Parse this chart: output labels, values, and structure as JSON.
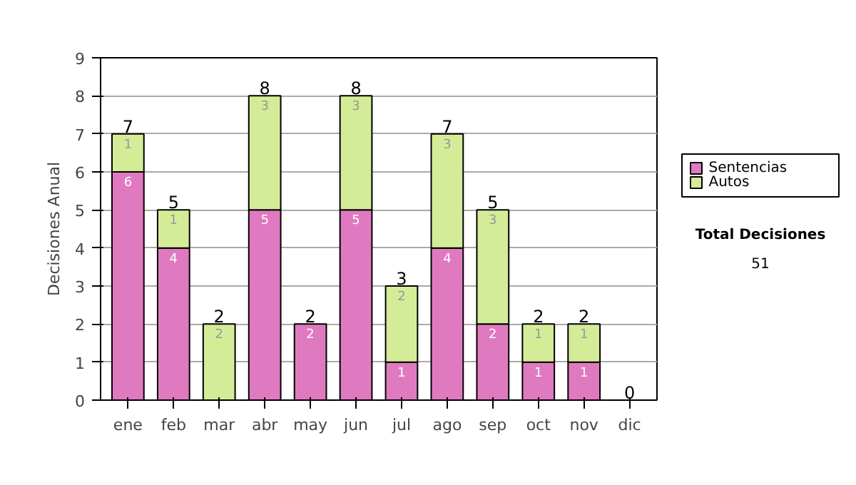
{
  "chart_data": {
    "type": "bar",
    "stacked": true,
    "ylabel": "Decisiones Anual",
    "categories": [
      "ene",
      "feb",
      "mar",
      "abr",
      "may",
      "jun",
      "jul",
      "ago",
      "sep",
      "oct",
      "nov",
      "dic"
    ],
    "series": [
      {
        "name": "Sentencias",
        "color": "#e07ac0",
        "values": [
          6,
          4,
          0,
          5,
          2,
          5,
          1,
          4,
          2,
          1,
          1,
          0
        ],
        "value_labels": [
          "6",
          "4",
          null,
          "5",
          "2",
          "5",
          "1",
          "4",
          "2",
          "1",
          "1",
          null
        ]
      },
      {
        "name": "Autos",
        "color": "#d4ec98",
        "values": [
          1,
          1,
          2,
          3,
          0,
          3,
          2,
          3,
          3,
          1,
          1,
          0
        ],
        "value_labels": [
          "1",
          "1",
          "2",
          "3",
          null,
          "3",
          "2",
          "3",
          "3",
          "1",
          "1",
          null
        ]
      }
    ],
    "totals": [
      "7",
      "5",
      "2",
      "8",
      "2",
      "8",
      "3",
      "7",
      "5",
      "2",
      "2",
      "0"
    ],
    "ylim": [
      0,
      9
    ],
    "yticks": [
      0,
      1,
      2,
      3,
      4,
      5,
      6,
      7,
      8,
      9
    ],
    "grid": "y",
    "legend": "right",
    "annotations": [
      "Total Decisiones",
      "51"
    ]
  }
}
